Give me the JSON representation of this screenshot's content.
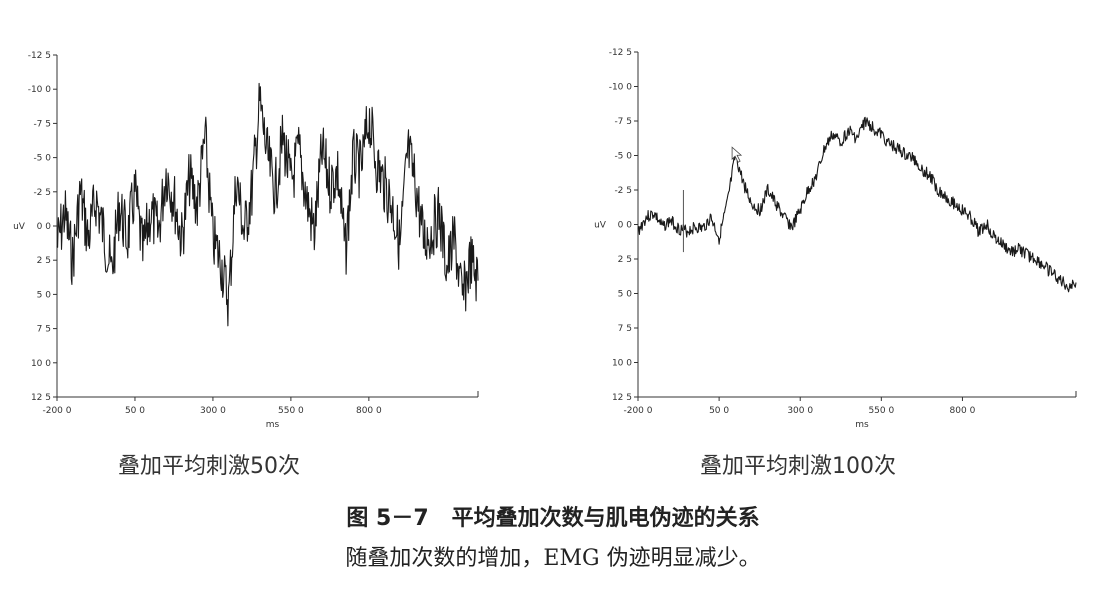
{
  "figure": {
    "title": "图 5－7   平均叠加次数与肌电伪迹的关系",
    "description": "随叠加次数的增加，EMG 伪迹明显减少。"
  },
  "chart_data": [
    {
      "type": "line",
      "caption": "叠加平均刺激50次",
      "xlabel": "ms",
      "ylabel": "uV",
      "xlim": [
        -200,
        1150
      ],
      "ylim": [
        12.5,
        -12.5
      ],
      "y_inverted": true,
      "x_ticks": [
        "-200 0",
        "50 0",
        "300 0",
        "550 0",
        "800 0"
      ],
      "x_tick_values": [
        -200,
        50,
        300,
        550,
        800
      ],
      "y_ticks": [
        "-12 5",
        "-10 0",
        "-7 5",
        "-5 0",
        "-2 5",
        "0 0",
        "2 5",
        "5 0",
        "7 5",
        "10 0",
        "12 5"
      ],
      "y_tick_values": [
        -12.5,
        -10,
        -7.5,
        -5,
        -2.5,
        0,
        2.5,
        5,
        7.5,
        10,
        12.5
      ],
      "grid": false,
      "series": [
        {
          "x": [
            -200,
            -175,
            -150,
            -125,
            -100,
            -75,
            -50,
            -25,
            0,
            25,
            50,
            75,
            100,
            125,
            150,
            175,
            200,
            225,
            250,
            275,
            300,
            325,
            350,
            375,
            400,
            425,
            450,
            475,
            500,
            525,
            550,
            575,
            600,
            625,
            650,
            675,
            700,
            725,
            750,
            775,
            800,
            825,
            850,
            875,
            900,
            925,
            950,
            975,
            1000,
            1025,
            1050,
            1075,
            1100,
            1125,
            1150
          ],
          "values": [
            1.5,
            -1.0,
            2.5,
            -2.5,
            1.0,
            -2.0,
            0.5,
            3.5,
            -1.5,
            1.0,
            -2.5,
            2.0,
            -1.0,
            0.5,
            -4.0,
            -2.0,
            1.0,
            -3.5,
            -1.5,
            -6.5,
            1.0,
            2.5,
            5.5,
            -3.5,
            0.5,
            -2.5,
            -9.0,
            -5.0,
            -2.5,
            -6.5,
            -3.0,
            -5.5,
            -2.0,
            0.5,
            -5.5,
            -3.0,
            -4.0,
            2.0,
            -5.0,
            -4.0,
            -8.0,
            -4.5,
            -3.0,
            -1.5,
            1.5,
            -5.5,
            -3.0,
            1.0,
            0.5,
            -1.0,
            3.0,
            1.0,
            5.5,
            2.5,
            4.0
          ]
        }
      ]
    },
    {
      "type": "line",
      "caption": "叠加平均刺激100次",
      "xlabel": "ms",
      "ylabel": "uV",
      "xlim": [
        -200,
        1150
      ],
      "ylim": [
        12.5,
        -12.5
      ],
      "y_inverted": true,
      "x_ticks": [
        "-200 0",
        "50 0",
        "300 0",
        "550 0",
        "800 0"
      ],
      "x_tick_values": [
        -200,
        50,
        300,
        550,
        800
      ],
      "y_ticks": [
        "-12 5",
        "-10 0",
        "-7 5",
        "-5 0",
        "-2 5",
        "0 0",
        "2 5",
        "5 0",
        "7 5",
        "10 0",
        "12 5"
      ],
      "y_tick_values": [
        -12.5,
        -10,
        -7.5,
        -5,
        -2.5,
        0,
        2.5,
        5,
        7.5,
        10,
        12.5
      ],
      "grid": false,
      "series": [
        {
          "x": [
            -200,
            -175,
            -150,
            -125,
            -100,
            -75,
            -50,
            -25,
            0,
            25,
            50,
            75,
            100,
            125,
            150,
            175,
            200,
            225,
            250,
            275,
            300,
            325,
            350,
            375,
            400,
            425,
            450,
            475,
            500,
            525,
            550,
            575,
            600,
            625,
            650,
            675,
            700,
            725,
            750,
            775,
            800,
            825,
            850,
            875,
            900,
            925,
            950,
            975,
            1000,
            1025,
            1050,
            1075,
            1100,
            1125,
            1150
          ],
          "values": [
            0.5,
            -0.5,
            -0.8,
            0.2,
            -0.3,
            0.3,
            0.5,
            0.2,
            0.3,
            -0.5,
            1.0,
            -1.5,
            -5.0,
            -3.0,
            -1.5,
            -1.0,
            -2.5,
            -1.5,
            -0.5,
            0.2,
            -1.0,
            -2.5,
            -3.5,
            -5.5,
            -6.5,
            -6.0,
            -6.8,
            -6.2,
            -7.5,
            -7.0,
            -6.5,
            -5.8,
            -5.5,
            -5.0,
            -4.8,
            -4.0,
            -3.5,
            -2.5,
            -2.0,
            -1.5,
            -1.0,
            -0.5,
            0.5,
            0.0,
            1.0,
            1.5,
            2.0,
            1.8,
            2.2,
            2.5,
            3.0,
            3.5,
            4.0,
            4.5,
            4.2
          ]
        }
      ]
    }
  ]
}
